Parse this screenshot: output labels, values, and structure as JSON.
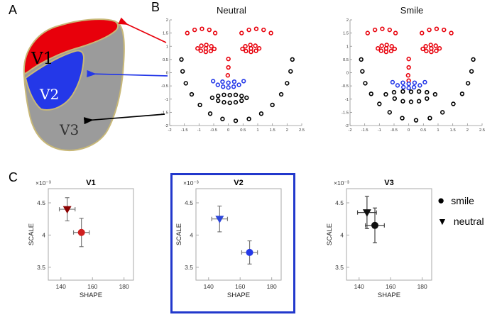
{
  "panel_labels": {
    "a": "A",
    "b": "B",
    "c": "C"
  },
  "colors": {
    "red": "#e8000b",
    "blue": "#2438e8",
    "black": "#000000",
    "gray_region": "#9b9b9b",
    "outline": "#c8b878",
    "errorbar_gray": "#777777",
    "highlight_box": "#2238cc"
  },
  "brain_map": {
    "regions": [
      {
        "name": "V1",
        "color": "#e8000b",
        "label_color": "#000000"
      },
      {
        "name": "V2",
        "color": "#2438e8",
        "label_color": "#ffffff"
      },
      {
        "name": "V3",
        "color": "#9b9b9b",
        "label_color": "#333333"
      }
    ]
  },
  "chart_data": [
    {
      "id": "neutral",
      "type": "scatter",
      "title": "Neutral",
      "xlim": [
        -2,
        2.5
      ],
      "ylim": [
        -2,
        2
      ],
      "xticks": [
        -2,
        -1.5,
        -1,
        -0.5,
        0,
        0.5,
        1,
        1.5,
        2,
        2.5
      ],
      "yticks": [
        -2,
        -1.5,
        -1,
        -0.5,
        0,
        0.5,
        1,
        1.5,
        2
      ],
      "series": [
        {
          "name": "brows-eyes-red",
          "color": "#e8000b",
          "points": [
            [
              -1.4,
              1.5
            ],
            [
              -1.15,
              1.62
            ],
            [
              -0.9,
              1.66
            ],
            [
              -0.65,
              1.62
            ],
            [
              -0.45,
              1.5
            ],
            [
              0.45,
              1.5
            ],
            [
              0.7,
              1.62
            ],
            [
              0.95,
              1.66
            ],
            [
              1.2,
              1.62
            ],
            [
              1.45,
              1.5
            ],
            [
              -1.05,
              0.92
            ],
            [
              -0.92,
              1.02
            ],
            [
              -0.75,
              1.05
            ],
            [
              -0.58,
              1.0
            ],
            [
              -0.48,
              0.9
            ],
            [
              -0.6,
              0.82
            ],
            [
              -0.77,
              0.79
            ],
            [
              -0.94,
              0.83
            ],
            [
              -0.77,
              0.92
            ],
            [
              0.48,
              0.9
            ],
            [
              0.58,
              1.0
            ],
            [
              0.75,
              1.05
            ],
            [
              0.92,
              1.02
            ],
            [
              1.05,
              0.92
            ],
            [
              0.94,
              0.83
            ],
            [
              0.77,
              0.79
            ],
            [
              0.6,
              0.82
            ],
            [
              0.77,
              0.92
            ],
            [
              0,
              0.52
            ],
            [
              0,
              0.2
            ],
            [
              -0.02,
              -0.1
            ]
          ]
        },
        {
          "name": "nose-blue",
          "color": "#2438e8",
          "points": [
            [
              -0.52,
              -0.32
            ],
            [
              -0.36,
              -0.46
            ],
            [
              -0.18,
              -0.53
            ],
            [
              0,
              -0.56
            ],
            [
              0.18,
              -0.53
            ],
            [
              0.36,
              -0.46
            ],
            [
              0.52,
              -0.32
            ],
            [
              -0.2,
              -0.34
            ],
            [
              0,
              -0.38
            ],
            [
              0.2,
              -0.34
            ]
          ]
        },
        {
          "name": "outline-mouth-black",
          "color": "#000000",
          "points": [
            [
              -1.6,
              0.5
            ],
            [
              -1.56,
              0.05
            ],
            [
              -1.45,
              -0.4
            ],
            [
              -1.25,
              -0.82
            ],
            [
              -0.97,
              -1.22
            ],
            [
              -0.62,
              -1.55
            ],
            [
              -0.2,
              -1.75
            ],
            [
              0.25,
              -1.82
            ],
            [
              0.7,
              -1.75
            ],
            [
              1.12,
              -1.55
            ],
            [
              1.5,
              -1.22
            ],
            [
              1.8,
              -0.82
            ],
            [
              2.0,
              -0.4
            ],
            [
              2.12,
              0.05
            ],
            [
              2.18,
              0.5
            ],
            [
              -0.55,
              -0.95
            ],
            [
              -0.35,
              -0.88
            ],
            [
              -0.15,
              -0.84
            ],
            [
              0.05,
              -0.85
            ],
            [
              0.25,
              -0.84
            ],
            [
              0.45,
              -0.88
            ],
            [
              0.62,
              -0.95
            ],
            [
              0.45,
              -1.06
            ],
            [
              0.25,
              -1.12
            ],
            [
              0.05,
              -1.14
            ],
            [
              -0.15,
              -1.12
            ],
            [
              -0.35,
              -1.06
            ]
          ]
        }
      ]
    },
    {
      "id": "smile",
      "type": "scatter",
      "title": "Smile",
      "xlim": [
        -2,
        2.5
      ],
      "ylim": [
        -2,
        2
      ],
      "xticks": [
        -2,
        -1.5,
        -1,
        -0.5,
        0,
        0.5,
        1,
        1.5,
        2,
        2.5
      ],
      "yticks": [
        -2,
        -1.5,
        -1,
        -0.5,
        0,
        0.5,
        1,
        1.5,
        2
      ],
      "series": [
        {
          "name": "brows-eyes-red",
          "color": "#e8000b",
          "points": [
            [
              -1.4,
              1.5
            ],
            [
              -1.15,
              1.62
            ],
            [
              -0.9,
              1.66
            ],
            [
              -0.65,
              1.62
            ],
            [
              -0.45,
              1.5
            ],
            [
              0.45,
              1.5
            ],
            [
              0.7,
              1.62
            ],
            [
              0.95,
              1.66
            ],
            [
              1.2,
              1.62
            ],
            [
              1.45,
              1.5
            ],
            [
              -1.05,
              0.92
            ],
            [
              -0.92,
              1.02
            ],
            [
              -0.75,
              1.05
            ],
            [
              -0.58,
              1.0
            ],
            [
              -0.48,
              0.9
            ],
            [
              -0.6,
              0.82
            ],
            [
              -0.77,
              0.79
            ],
            [
              -0.94,
              0.83
            ],
            [
              -0.77,
              0.92
            ],
            [
              0.48,
              0.9
            ],
            [
              0.58,
              1.0
            ],
            [
              0.75,
              1.05
            ],
            [
              0.92,
              1.02
            ],
            [
              1.05,
              0.92
            ],
            [
              0.94,
              0.83
            ],
            [
              0.77,
              0.79
            ],
            [
              0.6,
              0.82
            ],
            [
              0.77,
              0.92
            ],
            [
              0,
              0.52
            ],
            [
              0,
              0.2
            ],
            [
              -0.02,
              -0.1
            ],
            [
              0,
              -0.3
            ]
          ]
        },
        {
          "name": "nose-blue",
          "color": "#2438e8",
          "points": [
            [
              -0.55,
              -0.36
            ],
            [
              -0.38,
              -0.48
            ],
            [
              -0.18,
              -0.55
            ],
            [
              0,
              -0.58
            ],
            [
              0.18,
              -0.55
            ],
            [
              0.38,
              -0.48
            ],
            [
              0.55,
              -0.36
            ],
            [
              -0.2,
              -0.38
            ],
            [
              0,
              -0.42
            ],
            [
              0.2,
              -0.38
            ]
          ]
        },
        {
          "name": "outline-mouth-black",
          "color": "#000000",
          "points": [
            [
              -1.62,
              0.5
            ],
            [
              -1.58,
              0.05
            ],
            [
              -1.48,
              -0.4
            ],
            [
              -1.28,
              -0.8
            ],
            [
              -1.0,
              -1.18
            ],
            [
              -0.65,
              -1.5
            ],
            [
              -0.22,
              -1.72
            ],
            [
              0.25,
              -1.8
            ],
            [
              0.72,
              -1.72
            ],
            [
              1.15,
              -1.5
            ],
            [
              1.52,
              -1.18
            ],
            [
              1.82,
              -0.8
            ],
            [
              2.02,
              -0.4
            ],
            [
              2.14,
              0.05
            ],
            [
              2.2,
              0.5
            ],
            [
              -0.78,
              -0.82
            ],
            [
              -0.5,
              -0.74
            ],
            [
              -0.2,
              -0.71
            ],
            [
              0.08,
              -0.72
            ],
            [
              0.35,
              -0.71
            ],
            [
              0.62,
              -0.74
            ],
            [
              0.9,
              -0.82
            ],
            [
              0.62,
              -0.98
            ],
            [
              0.35,
              -1.08
            ],
            [
              0.08,
              -1.1
            ],
            [
              -0.2,
              -1.08
            ],
            [
              -0.48,
              -0.98
            ]
          ]
        }
      ]
    },
    {
      "id": "v1",
      "type": "scatter-errorbar",
      "title": "V1",
      "exponent": "×10⁻³",
      "xlabel": "SHAPE",
      "ylabel": "SCALE",
      "xlim": [
        132,
        186
      ],
      "ylim": [
        3.3,
        4.72
      ],
      "xticks": [
        140,
        160,
        180
      ],
      "yticks": [
        3.5,
        4,
        4.5
      ],
      "errbar_color": "#777777",
      "points": [
        {
          "series": "neutral",
          "marker": "triangle-down",
          "x": 144,
          "y": 4.4,
          "xerr": 5,
          "yerr": 0.18,
          "color": "#8b0000"
        },
        {
          "series": "smile",
          "marker": "circle",
          "x": 153,
          "y": 4.04,
          "xerr": 5,
          "yerr": 0.22,
          "color": "#cf1f1f"
        }
      ]
    },
    {
      "id": "v2",
      "type": "scatter-errorbar",
      "title": "V2",
      "exponent": "×10⁻³",
      "xlabel": "SHAPE",
      "ylabel": "SCALE",
      "xlim": [
        132,
        186
      ],
      "ylim": [
        3.3,
        4.72
      ],
      "xticks": [
        140,
        160,
        180
      ],
      "yticks": [
        3.5,
        4,
        4.5
      ],
      "errbar_color": "#777777",
      "highlighted": true,
      "points": [
        {
          "series": "neutral",
          "marker": "triangle-down",
          "x": 147,
          "y": 4.25,
          "xerr": 5,
          "yerr": 0.2,
          "color": "#2d46d9"
        },
        {
          "series": "smile",
          "marker": "circle",
          "x": 166,
          "y": 3.73,
          "xerr": 5,
          "yerr": 0.18,
          "color": "#2438e8"
        }
      ]
    },
    {
      "id": "v3",
      "type": "scatter-errorbar",
      "title": "V3",
      "exponent": "×10⁻³",
      "xlabel": "SHAPE",
      "ylabel": "SCALE",
      "xlim": [
        132,
        186
      ],
      "ylim": [
        3.3,
        4.72
      ],
      "xticks": [
        140,
        160,
        180
      ],
      "yticks": [
        3.5,
        4,
        4.5
      ],
      "errbar_color": "#444444",
      "points": [
        {
          "series": "neutral",
          "marker": "triangle-down",
          "x": 145,
          "y": 4.35,
          "xerr": 6,
          "yerr": 0.25,
          "color": "#111111"
        },
        {
          "series": "smile",
          "marker": "circle",
          "x": 150,
          "y": 4.15,
          "xerr": 6,
          "yerr": 0.27,
          "color": "#111111"
        }
      ]
    }
  ],
  "legend": {
    "items": [
      {
        "marker": "circle",
        "glyph": "●",
        "label": "smile"
      },
      {
        "marker": "triangle-down",
        "glyph": "▼",
        "label": "neutral"
      }
    ]
  }
}
